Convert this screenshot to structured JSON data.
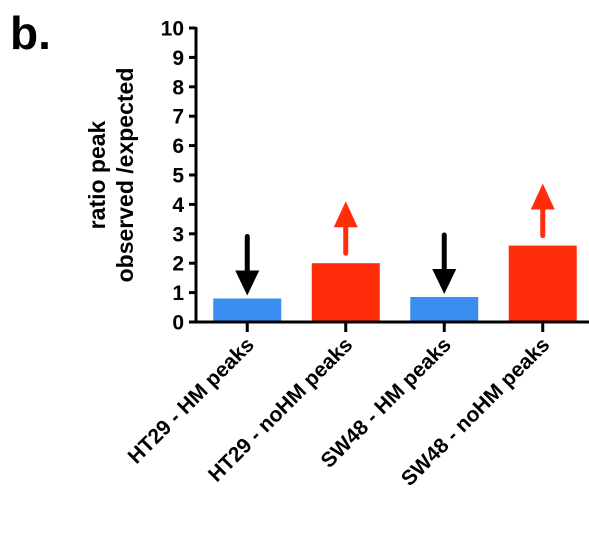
{
  "panel_label": "b.",
  "chart_data": {
    "type": "bar",
    "title": "",
    "xlabel": "",
    "ylabel_lines": [
      "ratio  peak",
      "observed /expected"
    ],
    "categories": [
      "HT29 - HM peaks",
      "HT29 - noHM peaks",
      "SW48 - HM peaks",
      "SW48 - noHM peaks"
    ],
    "values": [
      0.8,
      2.0,
      0.85,
      2.6
    ],
    "bar_colors": [
      "#3b8ef0",
      "#ff2d0a",
      "#3b8ef0",
      "#ff2d0a"
    ],
    "arrows": [
      {
        "direction": "down",
        "color": "#000000"
      },
      {
        "direction": "up",
        "color": "#ff2d0a"
      },
      {
        "direction": "down",
        "color": "#000000"
      },
      {
        "direction": "up",
        "color": "#ff2d0a"
      }
    ],
    "ylim": [
      0,
      10
    ],
    "yticks": [
      0,
      1,
      2,
      3,
      4,
      5,
      6,
      7,
      8,
      9,
      10
    ],
    "grid": false,
    "legend": "none"
  }
}
